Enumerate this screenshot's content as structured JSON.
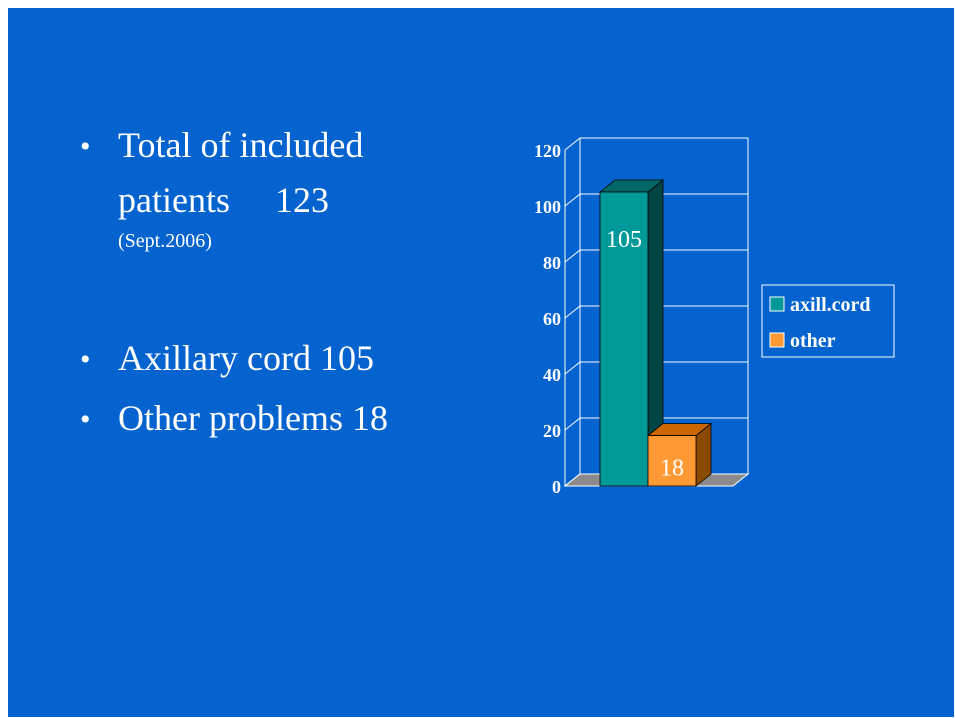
{
  "slide": {
    "bullets": [
      {
        "line1": "Total of included",
        "line2": "patients     123",
        "sub": "(Sept.2006)"
      },
      {
        "line1": "Axillary cord 105"
      },
      {
        "line1": "Other problems 18"
      }
    ]
  },
  "chart_data": {
    "type": "bar",
    "categories": [
      "axill.cord",
      "other"
    ],
    "values": [
      105,
      18
    ],
    "data_labels": [
      "105",
      "18"
    ],
    "legend": [
      "axill.cord",
      "other"
    ],
    "legend_position": "right",
    "ylim": [
      0,
      120
    ],
    "yticks": [
      0,
      20,
      40,
      60,
      80,
      100,
      120
    ],
    "ytick_labels": [
      "0",
      "20",
      "40",
      "60",
      "80",
      "100",
      "120"
    ],
    "grid": true,
    "style": "3d",
    "colors": {
      "front": [
        "#009999",
        "#ff9933"
      ],
      "top": [
        "#006666",
        "#cc6600"
      ],
      "side": [
        "#004444",
        "#8a4a00"
      ],
      "floor": "#8a8a8a",
      "background": "#0563cf",
      "lines": "#ffffff"
    }
  }
}
